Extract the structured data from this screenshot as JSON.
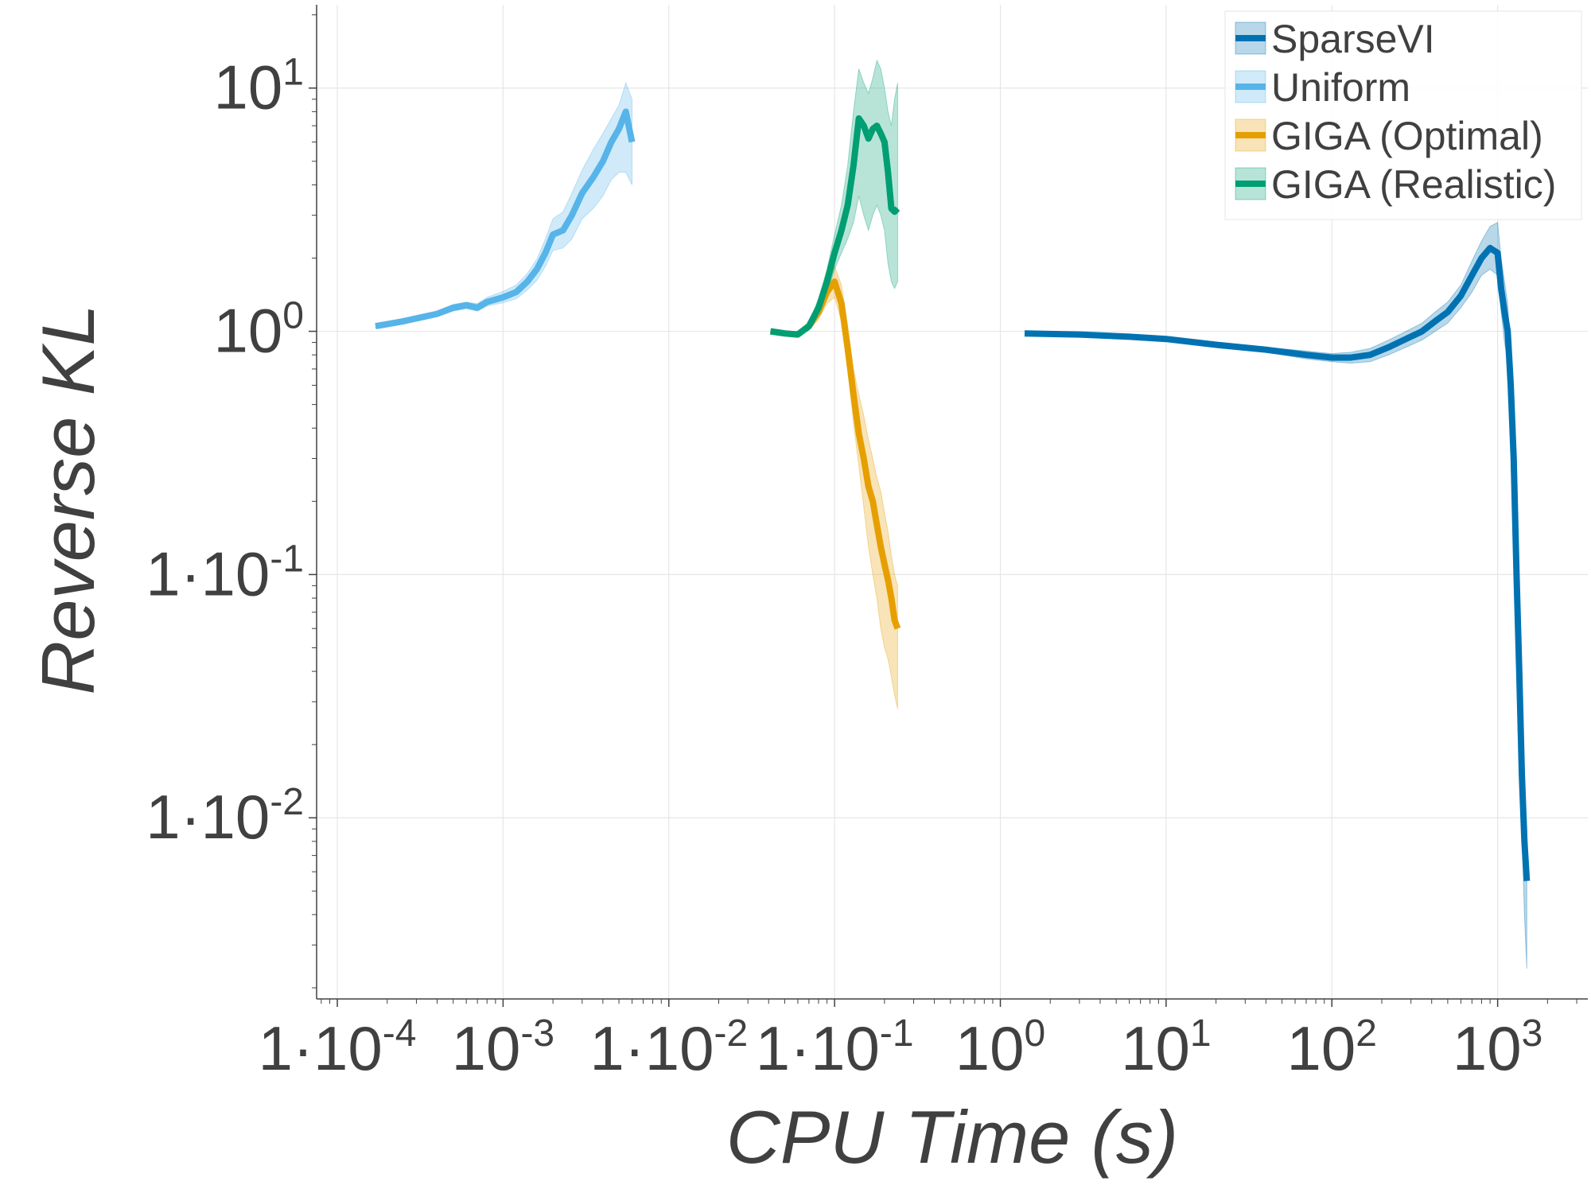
{
  "chart_data": {
    "type": "line",
    "xlabel": "CPU Time (s)",
    "ylabel": "Reverse KL",
    "x_scale": "log",
    "y_scale": "log",
    "xlim": [
      7.5e-05,
      3500
    ],
    "ylim": [
      0.0018,
      22
    ],
    "grid": true,
    "legend_position": "top-right",
    "x_ticks": [
      {
        "value": 0.0001,
        "base": "1·10",
        "exp": "-4"
      },
      {
        "value": 0.001,
        "base": "10",
        "exp": "-3"
      },
      {
        "value": 0.01,
        "base": "1·10",
        "exp": "-2"
      },
      {
        "value": 0.1,
        "base": "1·10",
        "exp": "-1"
      },
      {
        "value": 1,
        "base": "10",
        "exp": "0"
      },
      {
        "value": 10,
        "base": "10",
        "exp": "1"
      },
      {
        "value": 100,
        "base": "10",
        "exp": "2"
      },
      {
        "value": 1000,
        "base": "10",
        "exp": "3"
      }
    ],
    "y_ticks": [
      {
        "value": 10,
        "base": "10",
        "exp": "1"
      },
      {
        "value": 1,
        "base": "10",
        "exp": "0"
      },
      {
        "value": 0.1,
        "base": "1·10",
        "exp": "-1"
      },
      {
        "value": 0.01,
        "base": "1·10",
        "exp": "-2"
      }
    ],
    "series": [
      {
        "name": "GIGA (Optimal)",
        "color": "#E69F00",
        "x": [
          0.041,
          0.05,
          0.06,
          0.07,
          0.08,
          0.09,
          0.1,
          0.11,
          0.12,
          0.13,
          0.14,
          0.15,
          0.16,
          0.17,
          0.18,
          0.19,
          0.2,
          0.21,
          0.22,
          0.23,
          0.24
        ],
        "y": [
          1.0,
          0.98,
          0.97,
          1.05,
          1.2,
          1.45,
          1.6,
          1.3,
          0.85,
          0.55,
          0.38,
          0.3,
          0.23,
          0.2,
          0.16,
          0.13,
          0.11,
          0.095,
          0.08,
          0.065,
          0.06
        ],
        "lower": [
          1.0,
          0.96,
          0.95,
          1.01,
          1.12,
          1.3,
          1.38,
          1.1,
          0.7,
          0.42,
          0.28,
          0.19,
          0.13,
          0.1,
          0.08,
          0.06,
          0.05,
          0.045,
          0.038,
          0.032,
          0.028
        ],
        "upper": [
          1.0,
          1.0,
          1.0,
          1.09,
          1.28,
          1.6,
          1.85,
          1.55,
          1.05,
          0.7,
          0.55,
          0.45,
          0.36,
          0.3,
          0.25,
          0.22,
          0.18,
          0.15,
          0.12,
          0.1,
          0.09
        ]
      },
      {
        "name": "Uniform",
        "color": "#56B4E9",
        "x": [
          0.00017,
          0.0002,
          0.00025,
          0.0003,
          0.0004,
          0.0005,
          0.0006,
          0.0007,
          0.0008,
          0.001,
          0.0012,
          0.0014,
          0.0016,
          0.0018,
          0.002,
          0.0023,
          0.0026,
          0.003,
          0.0035,
          0.004,
          0.0045,
          0.005,
          0.0055,
          0.006
        ],
        "y": [
          1.05,
          1.07,
          1.1,
          1.13,
          1.18,
          1.25,
          1.28,
          1.25,
          1.32,
          1.38,
          1.45,
          1.6,
          1.8,
          2.1,
          2.5,
          2.6,
          3.0,
          3.7,
          4.3,
          5.0,
          6.0,
          6.8,
          8.0,
          6.0
        ],
        "lower": [
          1.03,
          1.05,
          1.08,
          1.1,
          1.15,
          1.21,
          1.24,
          1.21,
          1.27,
          1.31,
          1.36,
          1.48,
          1.62,
          1.85,
          2.15,
          2.2,
          2.4,
          2.9,
          3.2,
          3.6,
          4.2,
          4.5,
          4.5,
          4.0
        ],
        "upper": [
          1.07,
          1.09,
          1.12,
          1.16,
          1.21,
          1.29,
          1.32,
          1.3,
          1.38,
          1.46,
          1.55,
          1.73,
          1.98,
          2.4,
          2.9,
          3.1,
          3.7,
          4.6,
          5.6,
          6.5,
          7.5,
          8.5,
          10.5,
          9.0
        ]
      },
      {
        "name": "GIGA (Realistic)",
        "color": "#009E73",
        "x": [
          0.041,
          0.05,
          0.06,
          0.07,
          0.08,
          0.09,
          0.1,
          0.11,
          0.12,
          0.13,
          0.14,
          0.15,
          0.16,
          0.17,
          0.18,
          0.19,
          0.2,
          0.21,
          0.22,
          0.23,
          0.24
        ],
        "y": [
          1.0,
          0.98,
          0.97,
          1.05,
          1.25,
          1.6,
          2.1,
          2.6,
          3.3,
          4.8,
          7.5,
          7.0,
          6.2,
          6.8,
          7.0,
          6.5,
          6.0,
          4.5,
          3.2,
          3.1,
          3.2
        ],
        "lower": [
          1.0,
          0.96,
          0.95,
          1.01,
          1.15,
          1.42,
          1.8,
          2.1,
          2.4,
          2.8,
          3.6,
          3.0,
          2.6,
          3.0,
          3.3,
          3.0,
          2.6,
          1.9,
          1.6,
          1.5,
          1.6
        ],
        "upper": [
          1.0,
          1.0,
          1.0,
          1.09,
          1.36,
          1.8,
          2.5,
          3.3,
          4.8,
          8.0,
          12.0,
          10.5,
          9.5,
          11.0,
          13.0,
          12.0,
          10.0,
          8.0,
          7.0,
          9.0,
          10.5
        ]
      },
      {
        "name": "SparseVI",
        "color": "#0072B2",
        "x": [
          1.4,
          3,
          6,
          10,
          20,
          40,
          70,
          100,
          130,
          170,
          220,
          280,
          350,
          420,
          500,
          600,
          700,
          800,
          900,
          1000,
          1050,
          1100,
          1150,
          1200,
          1250,
          1300,
          1350,
          1400,
          1450,
          1500
        ],
        "y": [
          0.98,
          0.97,
          0.95,
          0.93,
          0.88,
          0.84,
          0.8,
          0.78,
          0.78,
          0.8,
          0.86,
          0.93,
          1.0,
          1.1,
          1.2,
          1.4,
          1.7,
          2.0,
          2.2,
          2.1,
          1.5,
          1.2,
          1.0,
          0.6,
          0.3,
          0.1,
          0.04,
          0.015,
          0.008,
          0.0055
        ],
        "lower": [
          0.98,
          0.97,
          0.95,
          0.93,
          0.87,
          0.82,
          0.77,
          0.75,
          0.74,
          0.75,
          0.8,
          0.86,
          0.92,
          1.0,
          1.08,
          1.25,
          1.45,
          1.7,
          1.8,
          1.7,
          1.2,
          0.9,
          0.75,
          0.45,
          0.2,
          0.065,
          0.025,
          0.009,
          0.004,
          0.0024
        ],
        "upper": [
          0.98,
          0.97,
          0.95,
          0.93,
          0.89,
          0.86,
          0.83,
          0.81,
          0.82,
          0.85,
          0.92,
          1.0,
          1.08,
          1.2,
          1.32,
          1.55,
          1.95,
          2.35,
          2.7,
          2.8,
          2.0,
          1.6,
          1.3,
          0.8,
          0.4,
          0.14,
          0.06,
          0.023,
          0.013,
          0.009
        ]
      }
    ],
    "legend": [
      {
        "label": "SparseVI",
        "color": "#0072B2"
      },
      {
        "label": "Uniform",
        "color": "#56B4E9"
      },
      {
        "label": "GIGA (Optimal)",
        "color": "#E69F00"
      },
      {
        "label": "GIGA (Realistic)",
        "color": "#009E73"
      }
    ]
  }
}
